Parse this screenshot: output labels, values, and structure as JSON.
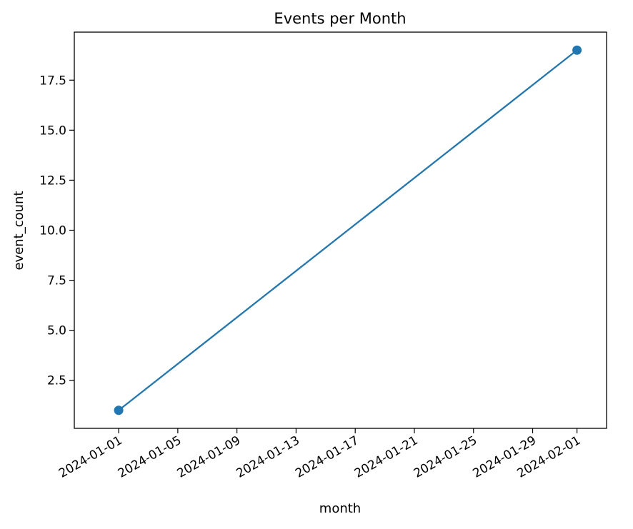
{
  "chart_data": {
    "type": "line",
    "title": "Events per Month",
    "xlabel": "month",
    "ylabel": "event_count",
    "x_axis_type": "date",
    "xlim": [
      "2023-12-29",
      "2024-02-03"
    ],
    "ylim": [
      0.1,
      19.9
    ],
    "x_ticks": [
      "2024-01-01",
      "2024-01-05",
      "2024-01-09",
      "2024-01-13",
      "2024-01-17",
      "2024-01-21",
      "2024-01-25",
      "2024-01-29",
      "2024-02-01"
    ],
    "y_ticks": [
      2.5,
      5.0,
      7.5,
      10.0,
      12.5,
      15.0,
      17.5
    ],
    "y_tick_labels": [
      "2.5",
      "5.0",
      "7.5",
      "10.0",
      "12.5",
      "15.0",
      "17.5"
    ],
    "grid": false,
    "legend": "none",
    "series": [
      {
        "x": [
          "2024-01-01",
          "2024-02-01"
        ],
        "values": [
          1,
          19
        ],
        "color": "#1f77b4",
        "marker": "circle"
      }
    ]
  }
}
